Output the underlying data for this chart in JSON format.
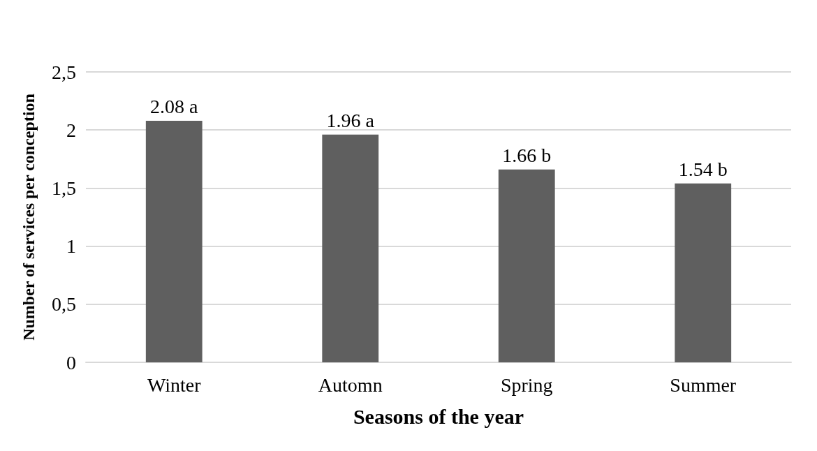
{
  "chart_data": {
    "type": "bar",
    "xlabel": "Seasons of the year",
    "ylabel": "Number of services per conception",
    "categories": [
      "Winter",
      "Automn",
      "Spring",
      "Summer"
    ],
    "values": [
      2.08,
      1.96,
      1.66,
      1.54
    ],
    "value_labels": [
      "2.08 a",
      "1.96 a",
      "1.66 b",
      "1.54 b"
    ],
    "color": "#5f5f5f",
    "ylim": [
      0,
      2.5
    ],
    "yticks": [
      0,
      {
        "value": 0.5,
        "label": "0,5"
      },
      1,
      {
        "value": 1.5,
        "label": "1,5"
      },
      2,
      {
        "value": 2.5,
        "label": "2,5"
      }
    ],
    "grid": "y"
  }
}
